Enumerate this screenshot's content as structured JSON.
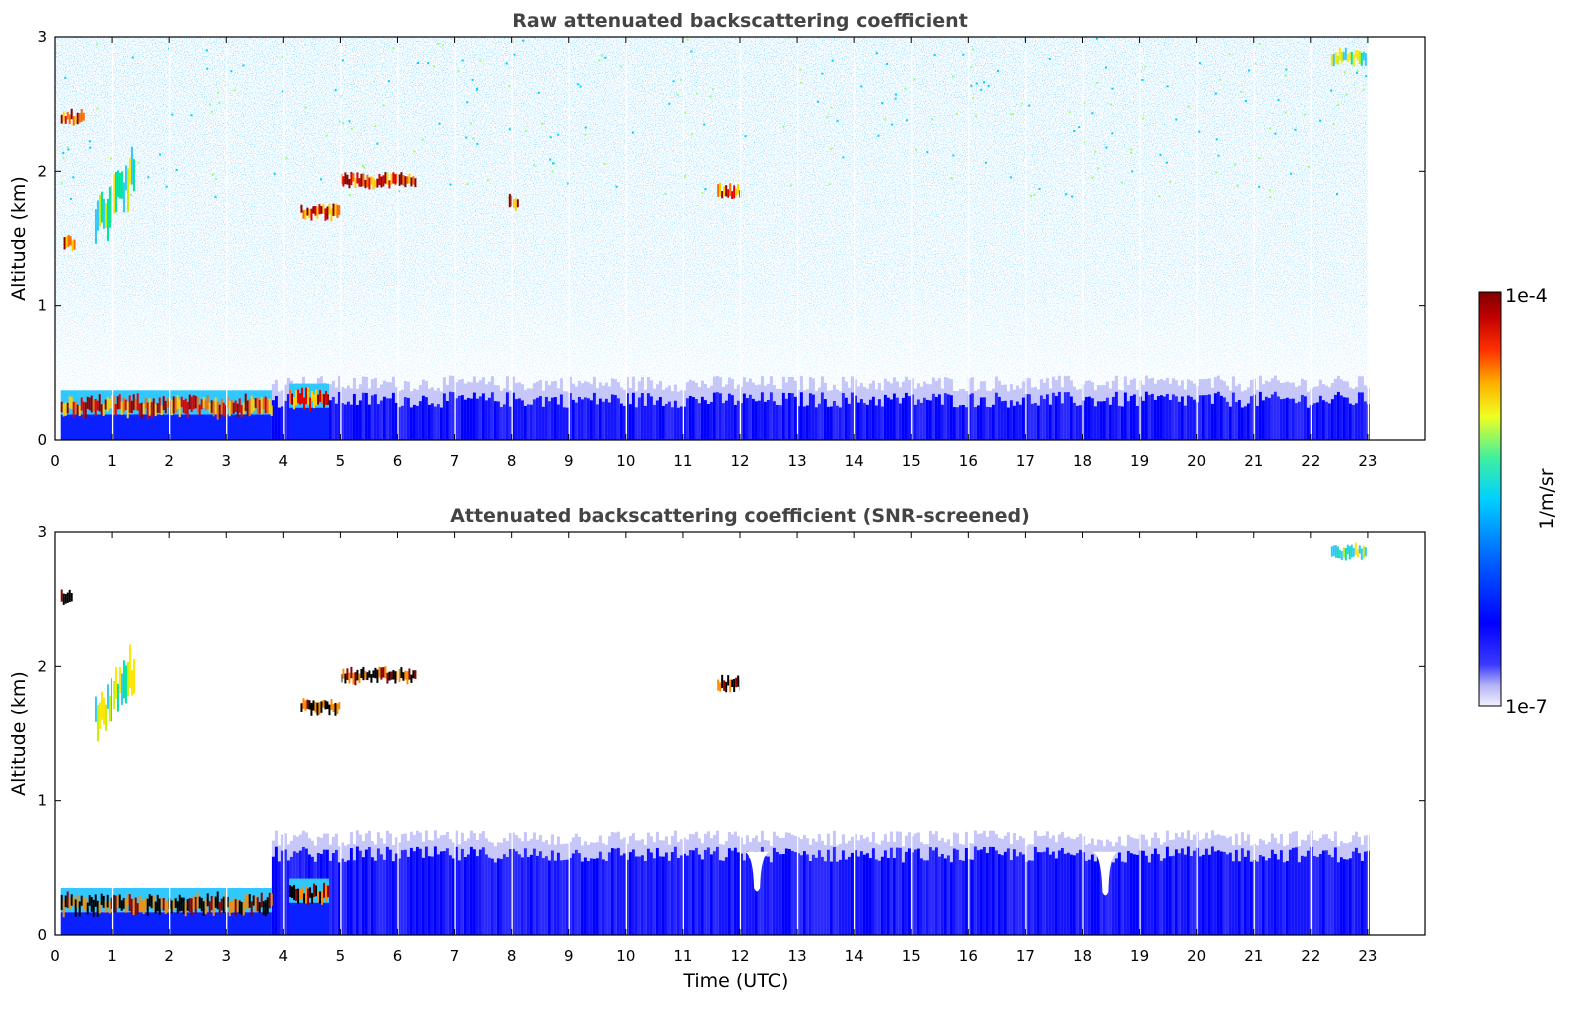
{
  "chart_data": [
    {
      "type": "heatmap",
      "title": "Raw attenuated backscattering coefficient",
      "xlabel": "",
      "ylabel": "Altitude (km)",
      "x_range": [
        0,
        24
      ],
      "y_range": [
        0,
        3
      ],
      "x_ticks": [
        "0",
        "1",
        "2",
        "3",
        "4",
        "5",
        "6",
        "7",
        "8",
        "9",
        "10",
        "11",
        "12",
        "13",
        "14",
        "15",
        "16",
        "17",
        "18",
        "19",
        "20",
        "21",
        "22",
        "23"
      ],
      "y_ticks": [
        "0",
        "1",
        "2",
        "3"
      ],
      "data_end_hour": 23,
      "grid": false,
      "features": [
        {
          "kind": "boundary_layer",
          "t_start": 0.1,
          "t_end": 3.8,
          "altitude_km": 0.25,
          "level": "1e-4"
        },
        {
          "kind": "boundary_layer",
          "t_start": 4.1,
          "t_end": 4.8,
          "altitude_km": 0.3,
          "level": "1e-4"
        },
        {
          "kind": "cloud_layer",
          "t_start": 5.0,
          "t_end": 6.3,
          "altitude_km": 1.93,
          "level": "1e-4"
        },
        {
          "kind": "cloud_layer",
          "t_start": 4.3,
          "t_end": 5.0,
          "altitude_km": 1.7,
          "level": "1e-4"
        },
        {
          "kind": "cloud_layer",
          "t_start": 0.1,
          "t_end": 0.5,
          "altitude_km": 2.4,
          "level": "1e-4"
        },
        {
          "kind": "cloud_layer",
          "t_start": 0.15,
          "t_end": 0.35,
          "altitude_km": 1.47,
          "level": "1e-4"
        },
        {
          "kind": "cloud_layer",
          "t_start": 11.6,
          "t_end": 12.0,
          "altitude_km": 1.85,
          "level": "1e-4"
        },
        {
          "kind": "cloud_layer",
          "t_start": 7.95,
          "t_end": 8.1,
          "altitude_km": 1.77,
          "level": "1e-4"
        },
        {
          "kind": "cloud_layer",
          "t_start": 22.35,
          "t_end": 22.95,
          "altitude_km": 2.85,
          "level": "5e-6"
        },
        {
          "kind": "aerosol_layer",
          "t_start": 0.7,
          "t_end": 1.4,
          "altitude_km": 1.8,
          "level": "5e-6"
        },
        {
          "kind": "near_surface_signal",
          "t_start": 3.8,
          "t_end": 23.0,
          "altitude_km": 0.3,
          "level": "1e-6"
        },
        {
          "kind": "noise",
          "t_start": 0.0,
          "t_end": 23.0,
          "altitude_km_range": [
            0.8,
            3.0
          ],
          "level": "2e-7"
        }
      ]
    },
    {
      "type": "heatmap",
      "title": "Attenuated backscattering coefficient (SNR-screened)",
      "xlabel": "Time (UTC)",
      "ylabel": "Altitude (km)",
      "x_range": [
        0,
        24
      ],
      "y_range": [
        0,
        3
      ],
      "x_ticks": [
        "0",
        "1",
        "2",
        "3",
        "4",
        "5",
        "6",
        "7",
        "8",
        "9",
        "10",
        "11",
        "12",
        "13",
        "14",
        "15",
        "16",
        "17",
        "18",
        "19",
        "20",
        "21",
        "22",
        "23"
      ],
      "y_ticks": [
        "0",
        "1",
        "2",
        "3"
      ],
      "data_end_hour": 23,
      "grid": false,
      "features": [
        {
          "kind": "boundary_layer",
          "t_start": 0.1,
          "t_end": 3.8,
          "altitude_km": 0.23,
          "level": "saturated"
        },
        {
          "kind": "boundary_layer",
          "t_start": 4.1,
          "t_end": 4.8,
          "altitude_km": 0.3,
          "level": "saturated"
        },
        {
          "kind": "cloud_layer",
          "t_start": 5.0,
          "t_end": 6.3,
          "altitude_km": 1.93,
          "level": "saturated"
        },
        {
          "kind": "cloud_layer",
          "t_start": 4.3,
          "t_end": 5.0,
          "altitude_km": 1.7,
          "level": "saturated"
        },
        {
          "kind": "cloud_layer",
          "t_start": 0.1,
          "t_end": 0.3,
          "altitude_km": 2.5,
          "level": "saturated"
        },
        {
          "kind": "cloud_layer",
          "t_start": 11.6,
          "t_end": 12.0,
          "altitude_km": 1.87,
          "level": "saturated"
        },
        {
          "kind": "cloud_layer",
          "t_start": 22.35,
          "t_end": 22.95,
          "altitude_km": 2.85,
          "level": "5e-6"
        },
        {
          "kind": "aerosol_layer",
          "t_start": 0.7,
          "t_end": 1.4,
          "altitude_km": 1.8,
          "level": "5e-6"
        },
        {
          "kind": "screened_boundary_layer",
          "t_start": 3.8,
          "t_end": 23.0,
          "top_km": 0.6,
          "level": "1e-6"
        },
        {
          "kind": "dip",
          "t_center": 12.3,
          "min_top_km": 0.3
        },
        {
          "kind": "dip",
          "t_center": 18.4,
          "min_top_km": 0.27
        }
      ]
    }
  ],
  "colorbar": {
    "max_label": "1e-4",
    "min_label": "1e-7",
    "unit_label": "1/m/sr",
    "colors": [
      "#8b0000",
      "#ff0000",
      "#ff8c00",
      "#ffff00",
      "#00e5a0",
      "#00bfff",
      "#0000ff",
      "#e6e6fa"
    ]
  }
}
